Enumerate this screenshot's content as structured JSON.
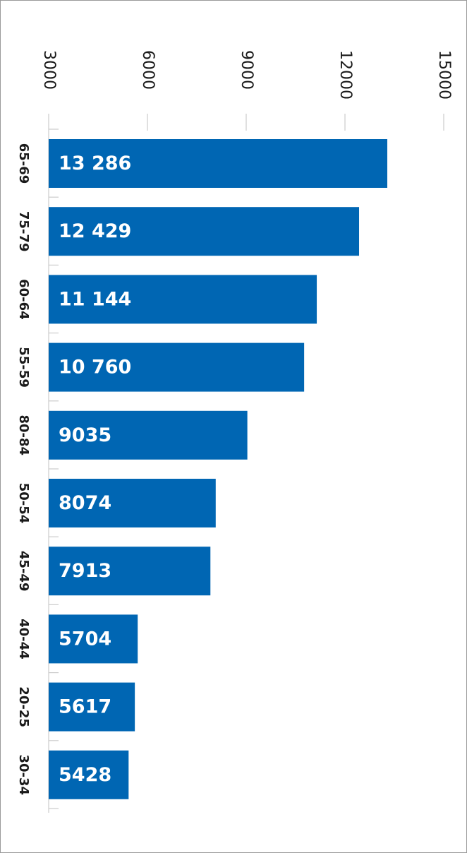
{
  "chart_data": {
    "type": "bar",
    "orientation": "horizontal",
    "categories": [
      "65-69",
      "75-79",
      "60-64",
      "55-59",
      "80-84",
      "50-54",
      "45-49",
      "40-44",
      "20-25",
      "30-34"
    ],
    "values": [
      13286,
      12429,
      11144,
      10760,
      9035,
      8074,
      7913,
      5704,
      5617,
      5428
    ],
    "value_labels": [
      "13 286",
      "12 429",
      "11 144",
      "10 760",
      "9035",
      "8074",
      "7913",
      "5704",
      "5617",
      "5428"
    ],
    "xticks": [
      "3000",
      "6000",
      "9000",
      "12000",
      "15000"
    ],
    "xlim": [
      3000,
      15000
    ],
    "title": "",
    "xlabel": "",
    "ylabel": "",
    "grid": "vertical",
    "bar_color": "#0066b3",
    "grid_color": "#cccccc"
  }
}
